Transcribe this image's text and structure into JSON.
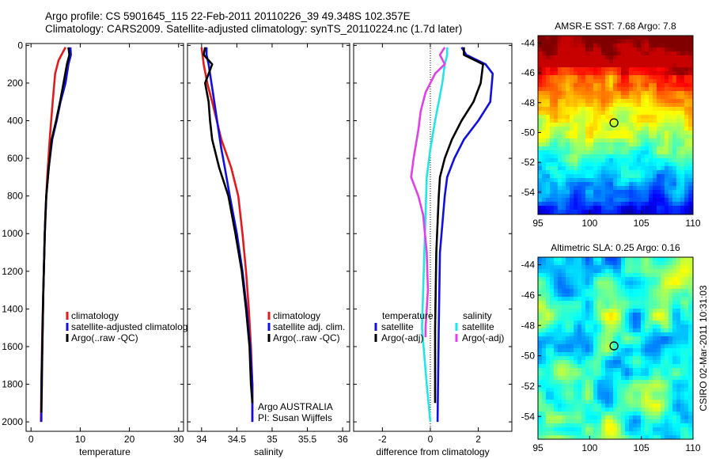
{
  "header": {
    "line1": "Argo profile: CS 5901645_115 22-Feb-2011 20110226_39 49.348S 102.357E",
    "line2": "Climatology: CARS2009. Satellite-adjusted climatology: synTS_20110224.nc (1.7d later)"
  },
  "colors": {
    "climatology": "#e31a1c",
    "satellite": "#1010e0",
    "argo": "#000000",
    "satellite_sal": "#22e6e6",
    "argo_sal": "#e040e8"
  },
  "chart_data": [
    {
      "type": "line",
      "id": "temperature-profile",
      "xlabel": "temperature",
      "ylabel": "",
      "xlim": [
        -1,
        31
      ],
      "ylim": [
        2050,
        -10
      ],
      "xticks": [
        0,
        10,
        20,
        30
      ],
      "yticks": [
        0,
        200,
        400,
        600,
        800,
        1000,
        1200,
        1400,
        1600,
        1800,
        2000
      ],
      "legend": {
        "placement": "bottom-right",
        "entries": [
          "climatology",
          "satellite-adjusted climatology",
          "Argo(..raw -QC)"
        ]
      },
      "series": [
        {
          "name": "climatology",
          "color": "#e31a1c",
          "points": [
            [
              7.0,
              10
            ],
            [
              6.4,
              40
            ],
            [
              5.6,
              80
            ],
            [
              4.9,
              150
            ],
            [
              4.4,
              300
            ],
            [
              3.8,
              500
            ],
            [
              3.3,
              700
            ],
            [
              2.9,
              900
            ],
            [
              2.6,
              1200
            ],
            [
              2.3,
              1500
            ],
            [
              2.1,
              1800
            ],
            [
              2.0,
              2000
            ]
          ]
        },
        {
          "name": "satellite-adjusted climatology",
          "color": "#1010e0",
          "points": [
            [
              8.0,
              10
            ],
            [
              8.1,
              50
            ],
            [
              7.6,
              100
            ],
            [
              7.0,
              200
            ],
            [
              6.0,
              300
            ],
            [
              5.2,
              400
            ],
            [
              4.3,
              500
            ],
            [
              3.6,
              650
            ],
            [
              3.1,
              800
            ],
            [
              2.8,
              1000
            ],
            [
              2.5,
              1300
            ],
            [
              2.3,
              1600
            ],
            [
              2.1,
              1800
            ],
            [
              2.1,
              2000
            ]
          ]
        },
        {
          "name": "Argo(..raw -QC)",
          "color": "#000000",
          "points": [
            [
              7.6,
              10
            ],
            [
              7.8,
              50
            ],
            [
              7.3,
              100
            ],
            [
              6.6,
              200
            ],
            [
              5.9,
              300
            ],
            [
              5.1,
              400
            ],
            [
              4.2,
              500
            ],
            [
              3.6,
              650
            ],
            [
              3.1,
              800
            ],
            [
              2.8,
              1000
            ],
            [
              2.5,
              1300
            ],
            [
              2.3,
              1600
            ],
            [
              2.2,
              1800
            ],
            [
              2.1,
              1950
            ]
          ]
        }
      ]
    },
    {
      "type": "line",
      "id": "salinity-profile",
      "xlabel": "salinity",
      "xlim": [
        33.8,
        36.1
      ],
      "ylim": [
        2050,
        -10
      ],
      "xticks": [
        34,
        34.5,
        35,
        35.5,
        36
      ],
      "legend": {
        "placement": "bottom-right",
        "entries": [
          "climatology",
          "satellite adj. clim.",
          "Argo(..raw -QC)"
        ]
      },
      "annotation": [
        "Argo AUSTRALIA",
        "PI: Susan Wijffels"
      ],
      "series": [
        {
          "name": "climatology",
          "color": "#e31a1c",
          "points": [
            [
              34.0,
              10
            ],
            [
              34.03,
              100
            ],
            [
              34.08,
              200
            ],
            [
              34.15,
              300
            ],
            [
              34.28,
              500
            ],
            [
              34.42,
              650
            ],
            [
              34.52,
              800
            ],
            [
              34.58,
              1000
            ],
            [
              34.63,
              1200
            ],
            [
              34.67,
              1400
            ],
            [
              34.7,
              1600
            ],
            [
              34.72,
              1800
            ],
            [
              34.72,
              2000
            ]
          ]
        },
        {
          "name": "satellite adj. clim.",
          "color": "#1010e0",
          "points": [
            [
              34.07,
              10
            ],
            [
              34.07,
              50
            ],
            [
              34.1,
              100
            ],
            [
              34.14,
              200
            ],
            [
              34.18,
              300
            ],
            [
              34.22,
              400
            ],
            [
              34.28,
              550
            ],
            [
              34.33,
              650
            ],
            [
              34.4,
              800
            ],
            [
              34.5,
              1000
            ],
            [
              34.58,
              1200
            ],
            [
              34.64,
              1400
            ],
            [
              34.69,
              1600
            ],
            [
              34.72,
              1800
            ],
            [
              34.72,
              2000
            ]
          ]
        },
        {
          "name": "Argo(..raw -QC)",
          "color": "#000000",
          "points": [
            [
              34.05,
              10
            ],
            [
              34.03,
              50
            ],
            [
              34.15,
              100
            ],
            [
              34.05,
              200
            ],
            [
              34.1,
              300
            ],
            [
              34.12,
              400
            ],
            [
              34.15,
              500
            ],
            [
              34.25,
              650
            ],
            [
              34.38,
              800
            ],
            [
              34.48,
              1000
            ],
            [
              34.57,
              1200
            ],
            [
              34.63,
              1400
            ],
            [
              34.68,
              1600
            ],
            [
              34.7,
              1800
            ],
            [
              34.72,
              1900
            ]
          ]
        }
      ]
    },
    {
      "type": "line",
      "id": "difference-profile",
      "xlabel": "difference from climatology",
      "xlim": [
        -3.2,
        3.4
      ],
      "ylim": [
        2050,
        -10
      ],
      "xticks": [
        -2,
        0,
        2
      ],
      "legend": {
        "placement": "bottom",
        "entries": [
          "temperature",
          "satellite",
          "Argo(-adj)",
          "salinity",
          "satellite",
          "Argo(-adj)"
        ]
      },
      "series": [
        {
          "name": "temperature satellite",
          "color": "#1010e0",
          "points": [
            [
              1.3,
              10
            ],
            [
              1.5,
              50
            ],
            [
              2.3,
              100
            ],
            [
              2.6,
              150
            ],
            [
              2.5,
              300
            ],
            [
              2.0,
              400
            ],
            [
              1.4,
              500
            ],
            [
              1.0,
              600
            ],
            [
              0.7,
              700
            ],
            [
              0.6,
              800
            ],
            [
              0.4,
              1100
            ],
            [
              0.35,
              1500
            ],
            [
              0.3,
              2000
            ]
          ]
        },
        {
          "name": "temperature Argo(-adj)",
          "color": "#000000",
          "points": [
            [
              1.4,
              10
            ],
            [
              1.4,
              50
            ],
            [
              2.2,
              100
            ],
            [
              2.1,
              200
            ],
            [
              1.8,
              300
            ],
            [
              1.3,
              400
            ],
            [
              0.9,
              500
            ],
            [
              0.6,
              600
            ],
            [
              0.4,
              700
            ],
            [
              0.35,
              800
            ],
            [
              0.25,
              1100
            ],
            [
              0.2,
              1500
            ],
            [
              0.2,
              1900
            ]
          ]
        },
        {
          "name": "salinity satellite",
          "color": "#22e6e6",
          "points": [
            [
              0.7,
              10
            ],
            [
              0.7,
              50
            ],
            [
              0.6,
              100
            ],
            [
              0.5,
              200
            ],
            [
              0.35,
              300
            ],
            [
              0.2,
              400
            ],
            [
              0.0,
              550
            ],
            [
              -0.15,
              700
            ],
            [
              -0.2,
              900
            ],
            [
              -0.25,
              1100
            ],
            [
              -0.3,
              1300
            ],
            [
              -0.35,
              1500
            ],
            [
              -0.15,
              1800
            ],
            [
              0.0,
              2000
            ]
          ]
        },
        {
          "name": "salinity Argo(-adj)",
          "color": "#e040e8",
          "points": [
            [
              0.6,
              10
            ],
            [
              0.4,
              50
            ],
            [
              0.6,
              100
            ],
            [
              0.2,
              150
            ],
            [
              -0.2,
              250
            ],
            [
              -0.4,
              350
            ],
            [
              -0.5,
              450
            ],
            [
              -0.7,
              600
            ],
            [
              -0.8,
              700
            ],
            [
              -0.5,
              800
            ],
            [
              -0.3,
              900
            ],
            [
              -0.15,
              1100
            ],
            [
              -0.1,
              1300
            ],
            [
              -0.2,
              1500
            ],
            [
              -0.2,
              1550
            ]
          ]
        }
      ]
    },
    {
      "type": "heatmap",
      "id": "amsre-sst-map",
      "title": "AMSR-E SST: 7.68 Argo: 7.8",
      "xlim": [
        95,
        110
      ],
      "ylim": [
        -55.5,
        -43.5
      ],
      "xticks": [
        95,
        100,
        105,
        110
      ],
      "yticks": [
        -44,
        -46,
        -48,
        -50,
        -52,
        -54
      ],
      "marker": {
        "lon": 102.357,
        "lat": -49.348
      }
    },
    {
      "type": "heatmap",
      "id": "altimetric-sla-map",
      "title": "Altimetric SLA: 0.25 Argo: 0.16",
      "xlim": [
        95,
        110
      ],
      "ylim": [
        -55.5,
        -43.5
      ],
      "xticks": [
        95,
        100,
        105,
        110
      ],
      "yticks": [
        -44,
        -46,
        -48,
        -50,
        -52,
        -54
      ],
      "marker": {
        "lon": 102.357,
        "lat": -49.348
      },
      "side_label": "CSIRO 02-Mar-2011 10:31:03"
    }
  ]
}
